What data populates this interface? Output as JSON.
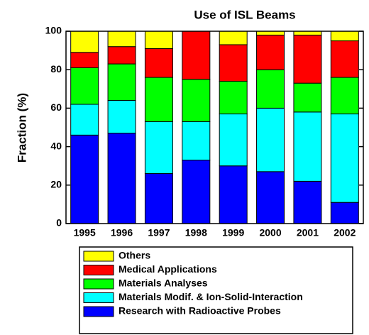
{
  "chart_data": {
    "type": "bar",
    "stacked": true,
    "title": "Use of ISL Beams",
    "y_label": "Fraction (%)",
    "categories": [
      "1995",
      "1996",
      "1997",
      "1998",
      "1999",
      "2000",
      "2001",
      "2002"
    ],
    "series": [
      {
        "name": "Research with Radioactive Probes",
        "color": "#0000ff",
        "values": [
          46,
          47,
          26,
          33,
          30,
          27,
          22,
          11
        ]
      },
      {
        "name": "Materials Modif. & Ion-Solid-Interaction",
        "color": "#00ffff",
        "values": [
          16,
          17,
          27,
          20,
          27,
          33,
          36,
          46
        ]
      },
      {
        "name": "Materials Analyses",
        "color": "#00ff00",
        "values": [
          19,
          19,
          23,
          22,
          17,
          20,
          15,
          19
        ]
      },
      {
        "name": "Medical Applications",
        "color": "#ff0000",
        "values": [
          8,
          9,
          15,
          25,
          19,
          18,
          25,
          19
        ]
      },
      {
        "name": "Others",
        "color": "#ffff00",
        "values": [
          11,
          8,
          9,
          0,
          7,
          2,
          2,
          5
        ]
      }
    ],
    "ylim": [
      0,
      100
    ],
    "yticks": [
      0,
      20,
      40,
      60,
      80,
      100
    ]
  }
}
